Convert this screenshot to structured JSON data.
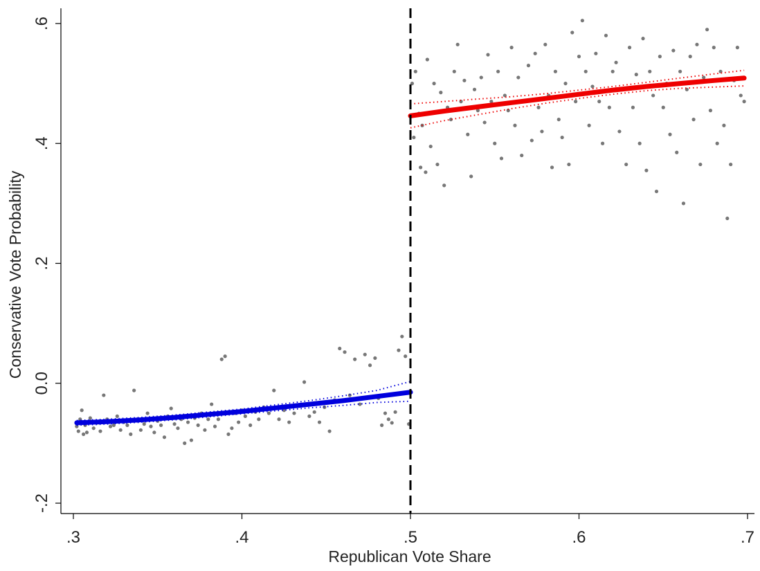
{
  "chart_data": {
    "type": "scatter",
    "title": "",
    "xlabel": "Republican Vote Share",
    "ylabel": "Conservative Vote Probability",
    "xlim": [
      0.3,
      0.7
    ],
    "ylim": [
      -0.2,
      0.6
    ],
    "x_ticks": [
      {
        "value": 0.3,
        "label": ".3"
      },
      {
        "value": 0.4,
        "label": ".4"
      },
      {
        "value": 0.5,
        "label": ".5"
      },
      {
        "value": 0.6,
        "label": ".6"
      },
      {
        "value": 0.7,
        "label": ".7"
      }
    ],
    "y_ticks": [
      {
        "value": -0.2,
        "label": "-.2"
      },
      {
        "value": 0.0,
        "label": "0.0"
      },
      {
        "value": 0.2,
        "label": ".2"
      },
      {
        "value": 0.4,
        "label": ".4"
      },
      {
        "value": 0.6,
        "label": ".6"
      }
    ],
    "threshold": 0.5,
    "grid": false,
    "colors": {
      "scatter": "#777777",
      "left_fit": "#0000dd",
      "right_fit": "#ee0000",
      "threshold": "#000000"
    },
    "scatter_left": [
      [
        0.302,
        -0.072
      ],
      [
        0.303,
        -0.08
      ],
      [
        0.304,
        -0.06
      ],
      [
        0.305,
        -0.045
      ],
      [
        0.306,
        -0.085
      ],
      [
        0.307,
        -0.07
      ],
      [
        0.308,
        -0.082
      ],
      [
        0.31,
        -0.058
      ],
      [
        0.312,
        -0.075
      ],
      [
        0.314,
        -0.066
      ],
      [
        0.316,
        -0.08
      ],
      [
        0.318,
        -0.02
      ],
      [
        0.32,
        -0.06
      ],
      [
        0.322,
        -0.072
      ],
      [
        0.324,
        -0.07
      ],
      [
        0.326,
        -0.055
      ],
      [
        0.328,
        -0.078
      ],
      [
        0.33,
        -0.065
      ],
      [
        0.332,
        -0.07
      ],
      [
        0.334,
        -0.085
      ],
      [
        0.336,
        -0.012
      ],
      [
        0.338,
        -0.06
      ],
      [
        0.34,
        -0.078
      ],
      [
        0.342,
        -0.068
      ],
      [
        0.344,
        -0.05
      ],
      [
        0.346,
        -0.072
      ],
      [
        0.348,
        -0.082
      ],
      [
        0.35,
        -0.063
      ],
      [
        0.352,
        -0.07
      ],
      [
        0.354,
        -0.09
      ],
      [
        0.356,
        -0.055
      ],
      [
        0.358,
        -0.042
      ],
      [
        0.36,
        -0.068
      ],
      [
        0.362,
        -0.075
      ],
      [
        0.364,
        -0.06
      ],
      [
        0.366,
        -0.1
      ],
      [
        0.368,
        -0.065
      ],
      [
        0.37,
        -0.095
      ],
      [
        0.372,
        -0.058
      ],
      [
        0.374,
        -0.07
      ],
      [
        0.376,
        -0.05
      ],
      [
        0.378,
        -0.078
      ],
      [
        0.38,
        -0.06
      ],
      [
        0.382,
        -0.035
      ],
      [
        0.384,
        -0.072
      ],
      [
        0.386,
        -0.06
      ],
      [
        0.388,
        0.04
      ],
      [
        0.39,
        0.045
      ],
      [
        0.392,
        -0.085
      ],
      [
        0.394,
        -0.075
      ],
      [
        0.396,
        -0.05
      ],
      [
        0.398,
        -0.065
      ],
      [
        0.4,
        -0.045
      ],
      [
        0.402,
        -0.055
      ],
      [
        0.405,
        -0.07
      ],
      [
        0.408,
        -0.048
      ],
      [
        0.41,
        -0.06
      ],
      [
        0.413,
        -0.04
      ],
      [
        0.416,
        -0.05
      ],
      [
        0.419,
        -0.012
      ],
      [
        0.422,
        -0.06
      ],
      [
        0.425,
        -0.045
      ],
      [
        0.428,
        -0.065
      ],
      [
        0.431,
        -0.05
      ],
      [
        0.434,
        -0.038
      ],
      [
        0.437,
        0.002
      ],
      [
        0.44,
        -0.055
      ],
      [
        0.443,
        -0.048
      ],
      [
        0.446,
        -0.065
      ],
      [
        0.449,
        -0.04
      ],
      [
        0.452,
        -0.08
      ],
      [
        0.455,
        -0.028
      ],
      [
        0.458,
        0.058
      ],
      [
        0.461,
        0.052
      ],
      [
        0.464,
        -0.02
      ],
      [
        0.467,
        0.04
      ],
      [
        0.47,
        -0.035
      ],
      [
        0.473,
        0.048
      ],
      [
        0.476,
        0.03
      ],
      [
        0.479,
        0.042
      ],
      [
        0.481,
        -0.025
      ],
      [
        0.483,
        -0.07
      ],
      [
        0.485,
        -0.05
      ],
      [
        0.487,
        -0.06
      ],
      [
        0.489,
        -0.066
      ],
      [
        0.491,
        -0.048
      ],
      [
        0.493,
        0.055
      ],
      [
        0.495,
        0.078
      ],
      [
        0.497,
        0.045
      ],
      [
        0.499,
        -0.068
      ]
    ],
    "scatter_right": [
      [
        0.501,
        0.5
      ],
      [
        0.502,
        0.41
      ],
      [
        0.503,
        0.52
      ],
      [
        0.505,
        0.45
      ],
      [
        0.506,
        0.36
      ],
      [
        0.507,
        0.43
      ],
      [
        0.509,
        0.352
      ],
      [
        0.51,
        0.54
      ],
      [
        0.512,
        0.395
      ],
      [
        0.514,
        0.5
      ],
      [
        0.516,
        0.365
      ],
      [
        0.518,
        0.485
      ],
      [
        0.52,
        0.33
      ],
      [
        0.522,
        0.46
      ],
      [
        0.524,
        0.44
      ],
      [
        0.526,
        0.52
      ],
      [
        0.528,
        0.565
      ],
      [
        0.53,
        0.47
      ],
      [
        0.532,
        0.505
      ],
      [
        0.534,
        0.415
      ],
      [
        0.536,
        0.345
      ],
      [
        0.538,
        0.49
      ],
      [
        0.54,
        0.455
      ],
      [
        0.542,
        0.51
      ],
      [
        0.544,
        0.435
      ],
      [
        0.546,
        0.548
      ],
      [
        0.548,
        0.47
      ],
      [
        0.55,
        0.4
      ],
      [
        0.552,
        0.52
      ],
      [
        0.554,
        0.375
      ],
      [
        0.556,
        0.48
      ],
      [
        0.558,
        0.455
      ],
      [
        0.56,
        0.56
      ],
      [
        0.562,
        0.43
      ],
      [
        0.564,
        0.51
      ],
      [
        0.566,
        0.38
      ],
      [
        0.568,
        0.47
      ],
      [
        0.57,
        0.53
      ],
      [
        0.572,
        0.405
      ],
      [
        0.574,
        0.55
      ],
      [
        0.576,
        0.46
      ],
      [
        0.578,
        0.42
      ],
      [
        0.58,
        0.565
      ],
      [
        0.582,
        0.48
      ],
      [
        0.584,
        0.36
      ],
      [
        0.586,
        0.52
      ],
      [
        0.588,
        0.44
      ],
      [
        0.59,
        0.41
      ],
      [
        0.592,
        0.5
      ],
      [
        0.594,
        0.365
      ],
      [
        0.596,
        0.585
      ],
      [
        0.598,
        0.47
      ],
      [
        0.6,
        0.545
      ],
      [
        0.602,
        0.605
      ],
      [
        0.604,
        0.52
      ],
      [
        0.606,
        0.43
      ],
      [
        0.608,
        0.495
      ],
      [
        0.61,
        0.55
      ],
      [
        0.612,
        0.47
      ],
      [
        0.614,
        0.4
      ],
      [
        0.616,
        0.58
      ],
      [
        0.618,
        0.46
      ],
      [
        0.62,
        0.52
      ],
      [
        0.622,
        0.535
      ],
      [
        0.624,
        0.42
      ],
      [
        0.626,
        0.49
      ],
      [
        0.628,
        0.365
      ],
      [
        0.63,
        0.56
      ],
      [
        0.632,
        0.46
      ],
      [
        0.634,
        0.515
      ],
      [
        0.636,
        0.4
      ],
      [
        0.638,
        0.575
      ],
      [
        0.64,
        0.355
      ],
      [
        0.642,
        0.52
      ],
      [
        0.644,
        0.48
      ],
      [
        0.646,
        0.32
      ],
      [
        0.648,
        0.545
      ],
      [
        0.65,
        0.46
      ],
      [
        0.652,
        0.5
      ],
      [
        0.654,
        0.415
      ],
      [
        0.656,
        0.555
      ],
      [
        0.658,
        0.385
      ],
      [
        0.66,
        0.52
      ],
      [
        0.662,
        0.3
      ],
      [
        0.664,
        0.49
      ],
      [
        0.666,
        0.545
      ],
      [
        0.668,
        0.44
      ],
      [
        0.67,
        0.565
      ],
      [
        0.672,
        0.365
      ],
      [
        0.674,
        0.51
      ],
      [
        0.676,
        0.59
      ],
      [
        0.678,
        0.455
      ],
      [
        0.68,
        0.56
      ],
      [
        0.682,
        0.4
      ],
      [
        0.684,
        0.52
      ],
      [
        0.686,
        0.43
      ],
      [
        0.688,
        0.275
      ],
      [
        0.69,
        0.365
      ],
      [
        0.692,
        0.505
      ],
      [
        0.694,
        0.56
      ],
      [
        0.696,
        0.48
      ],
      [
        0.698,
        0.47
      ]
    ],
    "fit_left": {
      "x": [
        0.302,
        0.32,
        0.34,
        0.36,
        0.38,
        0.4,
        0.42,
        0.44,
        0.46,
        0.48,
        0.5
      ],
      "y": [
        -0.066,
        -0.064,
        -0.061,
        -0.057,
        -0.052,
        -0.047,
        -0.041,
        -0.035,
        -0.029,
        -0.022,
        -0.015
      ],
      "ci_upper": [
        -0.062,
        -0.06,
        -0.057,
        -0.053,
        -0.048,
        -0.043,
        -0.036,
        -0.029,
        -0.021,
        -0.012,
        0.003
      ],
      "ci_lower": [
        -0.07,
        -0.068,
        -0.065,
        -0.061,
        -0.056,
        -0.051,
        -0.046,
        -0.041,
        -0.037,
        -0.032,
        -0.03
      ]
    },
    "fit_right": {
      "x": [
        0.5,
        0.52,
        0.54,
        0.56,
        0.58,
        0.6,
        0.62,
        0.64,
        0.66,
        0.68,
        0.698
      ],
      "y": [
        0.446,
        0.454,
        0.461,
        0.468,
        0.475,
        0.482,
        0.489,
        0.495,
        0.5,
        0.505,
        0.509
      ],
      "ci_upper": [
        0.466,
        0.47,
        0.474,
        0.478,
        0.483,
        0.489,
        0.495,
        0.502,
        0.509,
        0.516,
        0.522
      ],
      "ci_lower": [
        0.426,
        0.438,
        0.448,
        0.458,
        0.467,
        0.475,
        0.482,
        0.488,
        0.492,
        0.494,
        0.496
      ]
    }
  }
}
